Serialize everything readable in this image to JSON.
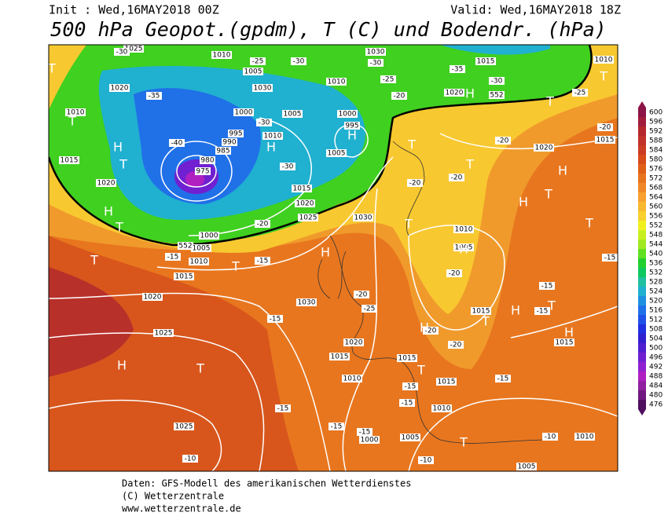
{
  "header": {
    "init": "Init : Wed,16MAY2018 00Z",
    "valid": "Valid: Wed,16MAY2018 18Z",
    "title": "500 hPa Geopot.(gpdm), T (C) und Bodendr. (hPa)"
  },
  "colorbar": {
    "levels": [
      600,
      596,
      592,
      588,
      584,
      580,
      576,
      572,
      568,
      564,
      560,
      556,
      552,
      548,
      544,
      540,
      536,
      532,
      528,
      524,
      520,
      516,
      512,
      508,
      504,
      500,
      496,
      492,
      488,
      484,
      480,
      476
    ],
    "colors": [
      "#8c1446",
      "#a01e3c",
      "#b4282d",
      "#c0322a",
      "#cc3c22",
      "#d84c1a",
      "#e06018",
      "#e87420",
      "#f08828",
      "#f8a030",
      "#f8b830",
      "#f8d030",
      "#f0f020",
      "#c8f020",
      "#a0e820",
      "#60e020",
      "#20d030",
      "#10c860",
      "#20c0a0",
      "#20b0d0",
      "#2090e0",
      "#2070e8",
      "#2050e8",
      "#2030e0",
      "#3020d0",
      "#5020d0",
      "#7020d0",
      "#9020d0",
      "#b020c0",
      "#9020a0",
      "#701880",
      "#501060"
    ]
  },
  "map_labels": [
    "1025",
    "1010",
    "-30",
    "-25",
    "1005",
    "-30",
    "1030",
    "-30",
    "-25",
    "1015",
    "-35",
    "-30",
    "1010",
    "1020",
    "-35",
    "1030",
    "1010",
    "-20",
    "1020",
    "552",
    "-25",
    "1010",
    "1000",
    "-30",
    "1005",
    "1000",
    "995",
    "995",
    "990",
    "985",
    "1010",
    "-40",
    "980",
    "975",
    "-20",
    "1020",
    "-20",
    "1015",
    "1015",
    "1005",
    "-30",
    "1020",
    "1015",
    "1020",
    "1025",
    "-20",
    "-20",
    "1030",
    "-20",
    "1000",
    "1005",
    "552",
    "1010",
    "-15",
    "-15",
    "1015",
    "1010",
    "1005",
    "-20",
    "-15",
    "-15",
    "1020",
    "1030",
    "-20",
    "-25",
    "-15",
    "1015",
    "-15",
    "1025",
    "-20",
    "-20",
    "1020",
    "1015",
    "1015",
    "1015",
    "1010",
    "-15",
    "1015",
    "-15",
    "-15",
    "-15",
    "1010",
    "1025",
    "-15",
    "-15",
    "1000",
    "1005",
    "-10",
    "1010",
    "-10",
    "-10",
    "1005",
    "T",
    "T",
    "H",
    "T",
    "H",
    "T",
    "T",
    "H",
    "T",
    "H",
    "H",
    "H",
    "T",
    "T",
    "T",
    "T",
    "H",
    "T",
    "H",
    "T",
    "T",
    "H",
    "T",
    "H",
    "T",
    "H",
    "T",
    "H",
    "H",
    "T",
    "T"
  ],
  "footer": [
    "Daten: GFS-Modell des amerikanischen Wetterdienstes",
    "(C) Wetterzentrale",
    "www.wetterzentrale.de"
  ]
}
